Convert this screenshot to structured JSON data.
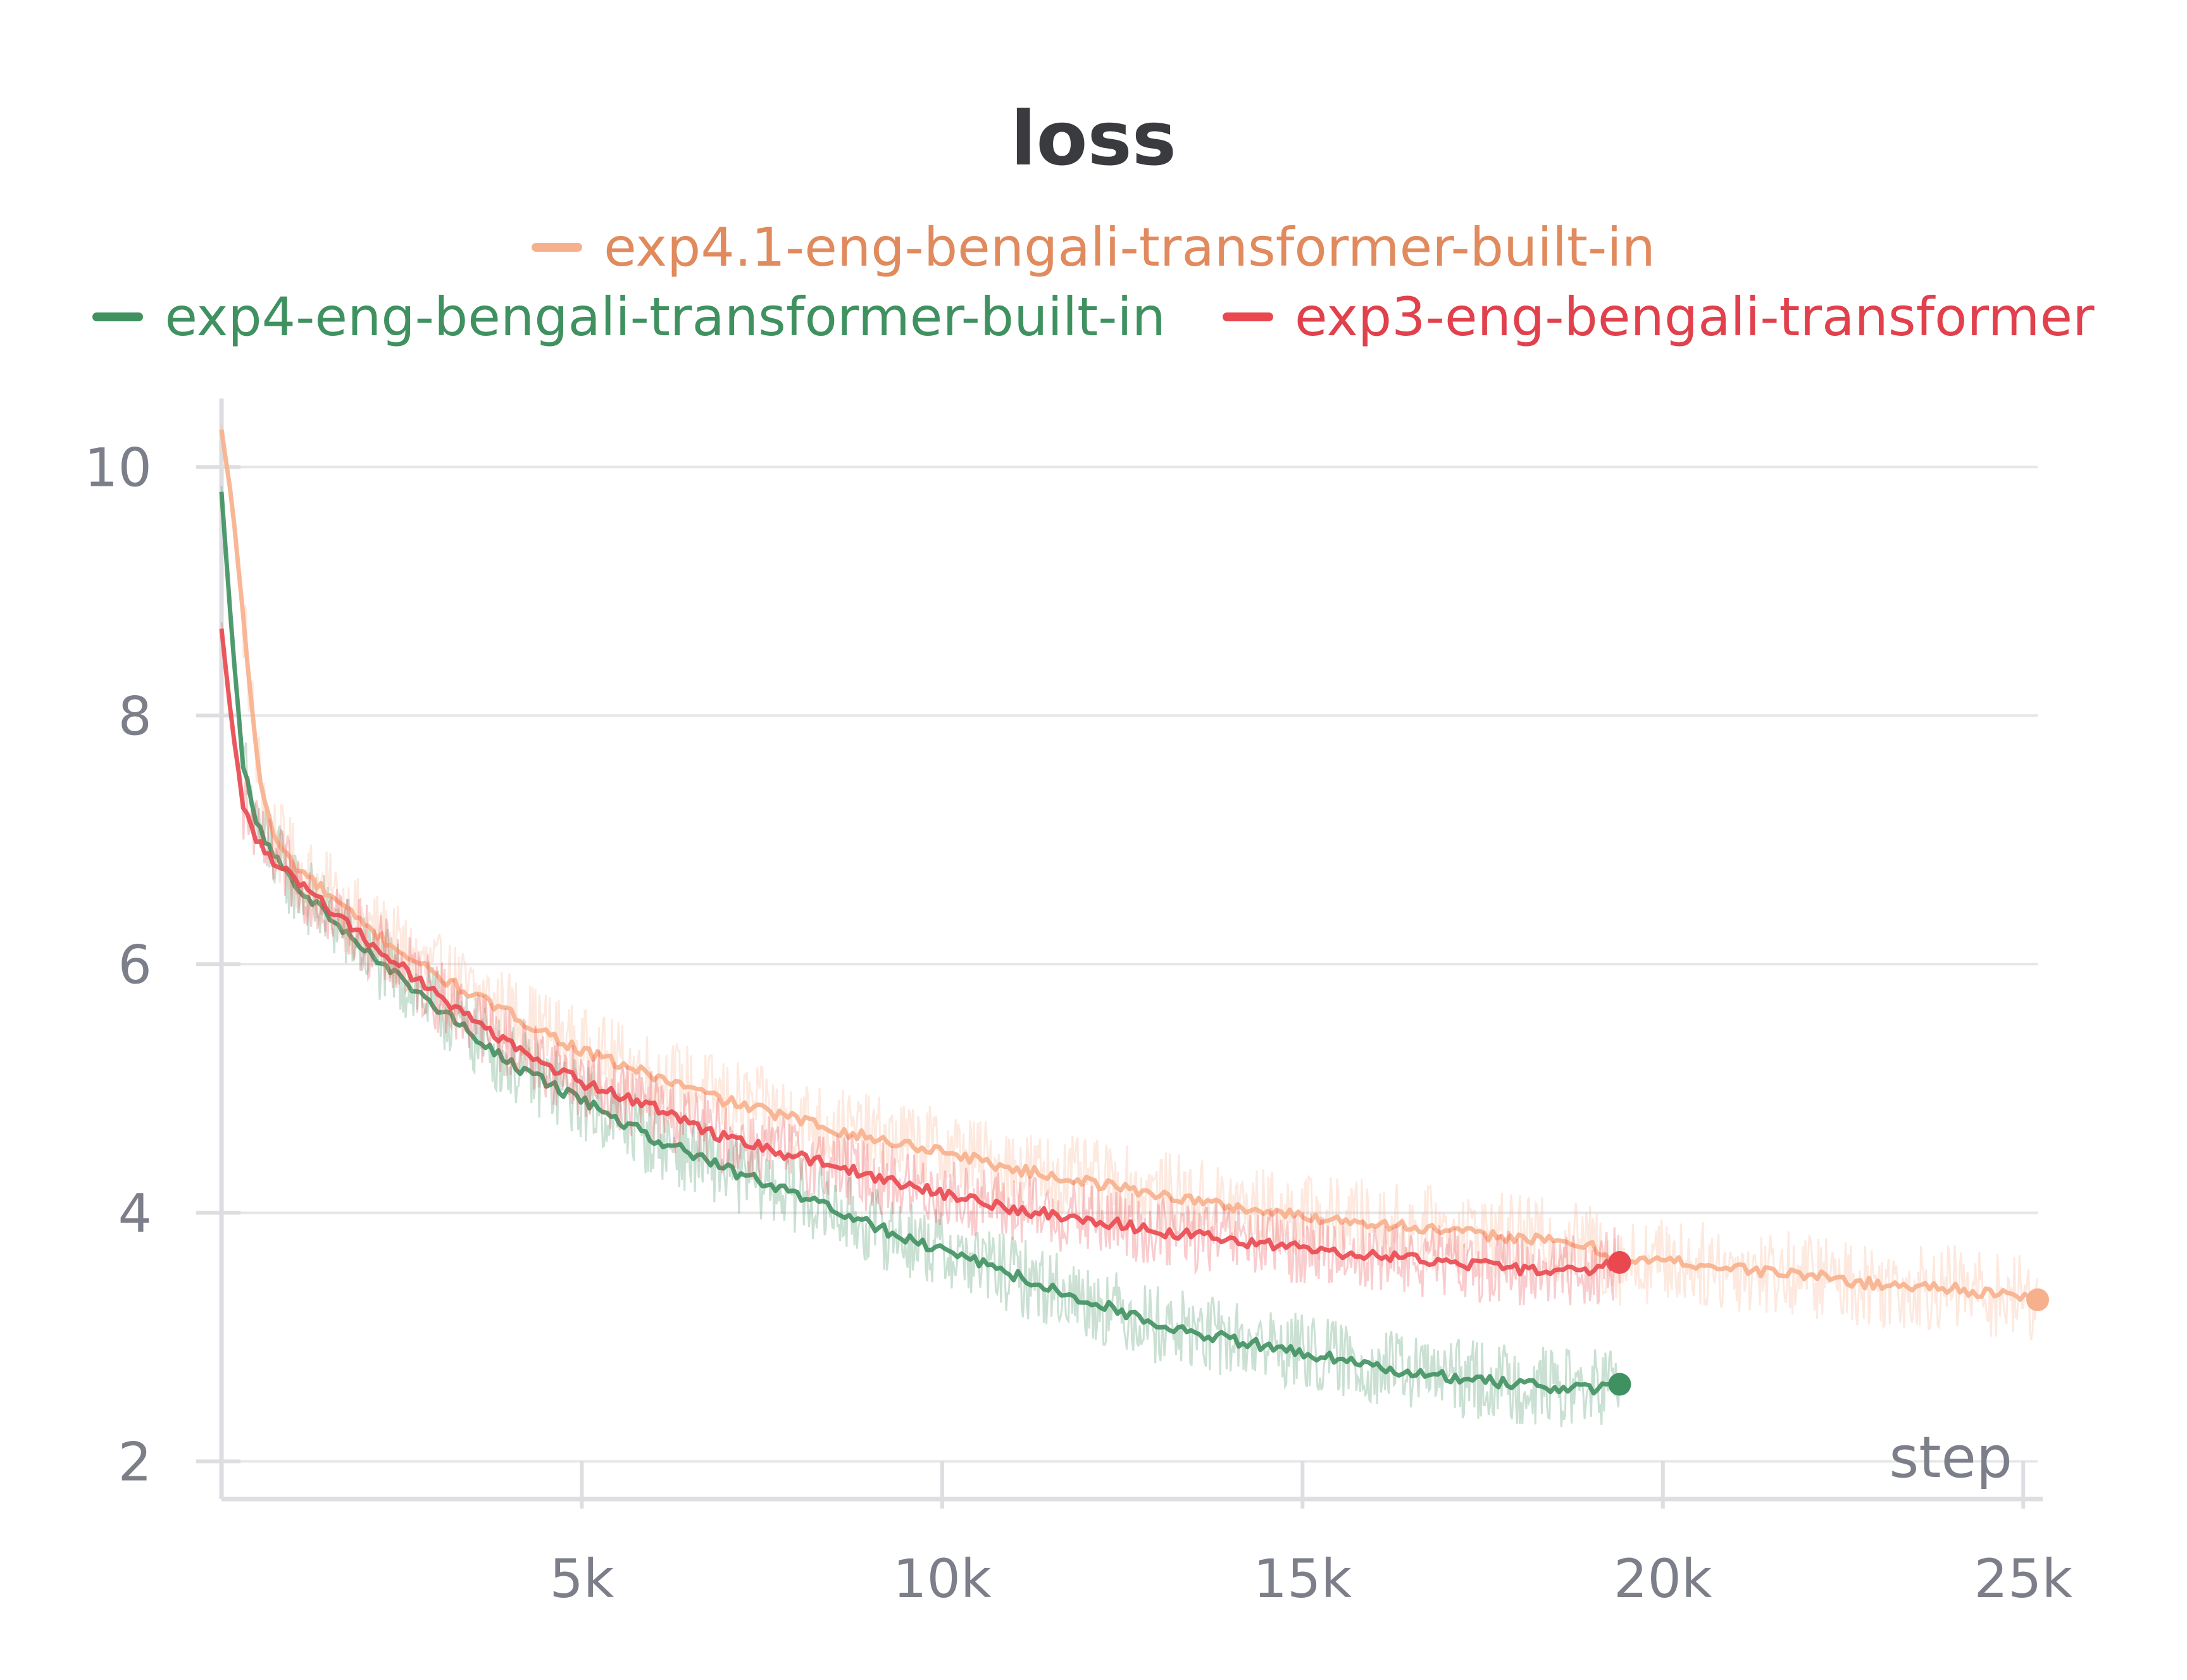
{
  "chart_data": {
    "type": "line",
    "title": "loss",
    "xlabel": "step",
    "ylabel": "",
    "xlim": [
      0,
      25200
    ],
    "ylim": [
      1.9,
      10.5
    ],
    "x_ticks": [
      5000,
      10000,
      15000,
      20000,
      25000
    ],
    "x_tick_labels": [
      "5k",
      "10k",
      "15k",
      "20k",
      "25k"
    ],
    "y_ticks": [
      2,
      4,
      6,
      8,
      10
    ],
    "y_tick_labels": [
      "2",
      "4",
      "6",
      "8",
      "10"
    ],
    "grid": true,
    "legend_position": "top-center",
    "series": [
      {
        "name": "exp4.1-eng-bengali-transformer-built-in",
        "color": "#f7b08c",
        "label_color": "#e08a5d",
        "noise": 0.35,
        "x": [
          0,
          150,
          300,
          500,
          700,
          1000,
          2000,
          3000,
          4000,
          5000,
          6000,
          7000,
          8000,
          9000,
          10000,
          11000,
          12000,
          13000,
          14000,
          15000,
          16000,
          17000,
          18000,
          19000,
          19400,
          20000,
          21000,
          22000,
          23000,
          24000,
          24500,
          25200
        ],
        "y": [
          10.3,
          9.7,
          8.8,
          7.6,
          7.05,
          6.8,
          6.3,
          5.9,
          5.6,
          5.3,
          5.1,
          4.9,
          4.75,
          4.6,
          4.5,
          4.35,
          4.25,
          4.15,
          4.05,
          3.97,
          3.92,
          3.85,
          3.8,
          3.73,
          3.6,
          3.62,
          3.55,
          3.5,
          3.42,
          3.4,
          3.35,
          3.3
        ]
      },
      {
        "name": "exp4-eng-bengali-transformer-built-in",
        "color": "#3f9160",
        "label_color": "#3f9160",
        "noise": 0.32,
        "x": [
          0,
          150,
          300,
          500,
          700,
          1000,
          2000,
          3000,
          4000,
          5000,
          6000,
          7000,
          8000,
          9000,
          10000,
          11000,
          12000,
          13000,
          14000,
          15000,
          16000,
          17000,
          18000,
          19000,
          19400
        ],
        "y": [
          9.8,
          8.6,
          7.6,
          7.1,
          6.9,
          6.65,
          6.1,
          5.65,
          5.2,
          4.9,
          4.6,
          4.35,
          4.15,
          3.9,
          3.7,
          3.5,
          3.3,
          3.1,
          2.98,
          2.88,
          2.76,
          2.68,
          2.62,
          2.58,
          2.62
        ]
      },
      {
        "name": "exp3-eng-bengali-transformer",
        "color": "#e9484f",
        "label_color": "#e0414c",
        "noise": 0.3,
        "x": [
          0,
          150,
          300,
          500,
          700,
          1000,
          2000,
          3000,
          4000,
          5000,
          6000,
          7000,
          8000,
          9000,
          10000,
          11000,
          12000,
          13000,
          14000,
          15000,
          16000,
          17000,
          18000,
          19000,
          19400
        ],
        "y": [
          8.7,
          7.9,
          7.3,
          7.0,
          6.85,
          6.7,
          6.2,
          5.75,
          5.35,
          5.05,
          4.85,
          4.6,
          4.45,
          4.3,
          4.15,
          4.02,
          3.95,
          3.85,
          3.78,
          3.72,
          3.65,
          3.6,
          3.55,
          3.55,
          3.6
        ]
      }
    ]
  }
}
